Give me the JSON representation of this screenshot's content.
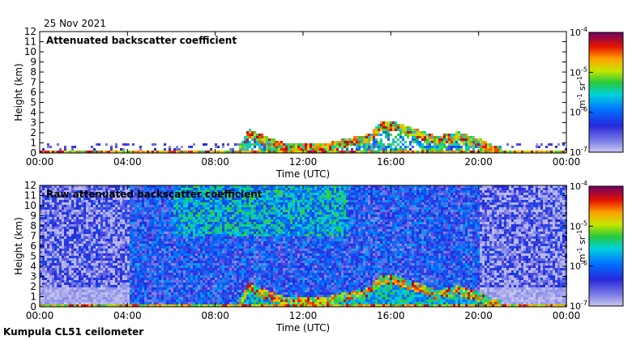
{
  "date": "25 Nov 2021",
  "footer": "Kumpula CL51 ceilometer",
  "chart_data": [
    {
      "type": "heatmap",
      "title": "Attenuated backscatter coefficient",
      "xlabel": "Time (UTC)",
      "ylabel": "Height (km)",
      "x_ticks": [
        "00:00",
        "04:00",
        "08:00",
        "12:00",
        "16:00",
        "20:00",
        "00:00"
      ],
      "y_ticks": [
        "0",
        "1",
        "2",
        "3",
        "4",
        "5",
        "6",
        "7",
        "8",
        "9",
        "10",
        "11",
        "12"
      ],
      "xlim_hours": [
        0,
        24
      ],
      "ylim_km": [
        0,
        12
      ],
      "colorbar": {
        "unit_base": "m",
        "unit_exp": "-1",
        "unit_base2": "sr",
        "unit_exp2": "-1",
        "ticks": [
          {
            "base": "10",
            "exp": "-4",
            "log": -4
          },
          {
            "base": "10",
            "exp": "-5",
            "log": -5
          },
          {
            "base": "10",
            "exp": "-6",
            "log": -6
          },
          {
            "base": "10",
            "exp": "-7",
            "log": -7
          }
        ],
        "range_log": [
          -7,
          -4
        ]
      },
      "cloud_layer_km": [
        [
          0,
          0.3
        ],
        [
          1,
          0.25
        ],
        [
          2,
          0.2
        ],
        [
          3,
          0.2
        ],
        [
          4,
          0.3
        ],
        [
          5,
          0.3
        ],
        [
          6,
          0.4
        ],
        [
          7,
          0.5
        ],
        [
          8,
          0.6
        ],
        [
          9,
          0.7
        ],
        [
          9.5,
          2.5
        ],
        [
          10,
          2.0
        ],
        [
          11,
          1.2
        ],
        [
          12,
          1.0
        ],
        [
          13,
          1.1
        ],
        [
          14,
          1.6
        ],
        [
          15,
          2.0
        ],
        [
          15.5,
          3.2
        ],
        [
          16,
          3.3
        ],
        [
          17,
          2.6
        ],
        [
          18,
          1.8
        ],
        [
          19,
          2.2
        ],
        [
          20,
          1.5
        ],
        [
          20.5,
          1.0
        ],
        [
          21,
          0.7
        ],
        [
          22,
          0.6
        ],
        [
          23,
          0.5
        ],
        [
          24,
          0.4
        ]
      ]
    },
    {
      "type": "heatmap",
      "title": "Raw attenuated backscatter coefficient",
      "xlabel": "Time (UTC)",
      "ylabel": "Height (km)",
      "x_ticks": [
        "00:00",
        "04:00",
        "08:00",
        "12:00",
        "16:00",
        "20:00",
        "00:00"
      ],
      "y_ticks": [
        "0",
        "1",
        "2",
        "3",
        "4",
        "5",
        "6",
        "7",
        "8",
        "9",
        "10",
        "11",
        "12"
      ],
      "xlim_hours": [
        0,
        24
      ],
      "ylim_km": [
        0,
        12
      ],
      "colorbar": {
        "unit_base": "m",
        "unit_exp": "-1",
        "unit_base2": "sr",
        "unit_exp2": "-1",
        "ticks": [
          {
            "base": "10",
            "exp": "-4",
            "log": -4
          },
          {
            "base": "10",
            "exp": "-5",
            "log": -5
          },
          {
            "base": "10",
            "exp": "-6",
            "log": -6
          },
          {
            "base": "10",
            "exp": "-7",
            "log": -7
          }
        ],
        "range_log": [
          -7,
          -4
        ]
      },
      "cloud_layer_km": [
        [
          0,
          0.3
        ],
        [
          1,
          0.25
        ],
        [
          2,
          0.2
        ],
        [
          3,
          0.2
        ],
        [
          4,
          0.3
        ],
        [
          5,
          0.3
        ],
        [
          6,
          0.4
        ],
        [
          7,
          0.5
        ],
        [
          8,
          0.6
        ],
        [
          9,
          0.7
        ],
        [
          9.5,
          2.5
        ],
        [
          10,
          2.0
        ],
        [
          11,
          1.2
        ],
        [
          12,
          1.0
        ],
        [
          13,
          1.1
        ],
        [
          14,
          1.6
        ],
        [
          15,
          2.0
        ],
        [
          15.5,
          3.2
        ],
        [
          16,
          3.3
        ],
        [
          17,
          2.6
        ],
        [
          18,
          1.8
        ],
        [
          19,
          2.2
        ],
        [
          20,
          1.5
        ],
        [
          20.5,
          1.0
        ],
        [
          21,
          0.7
        ],
        [
          22,
          0.6
        ],
        [
          23,
          0.5
        ],
        [
          24,
          0.4
        ]
      ]
    }
  ]
}
